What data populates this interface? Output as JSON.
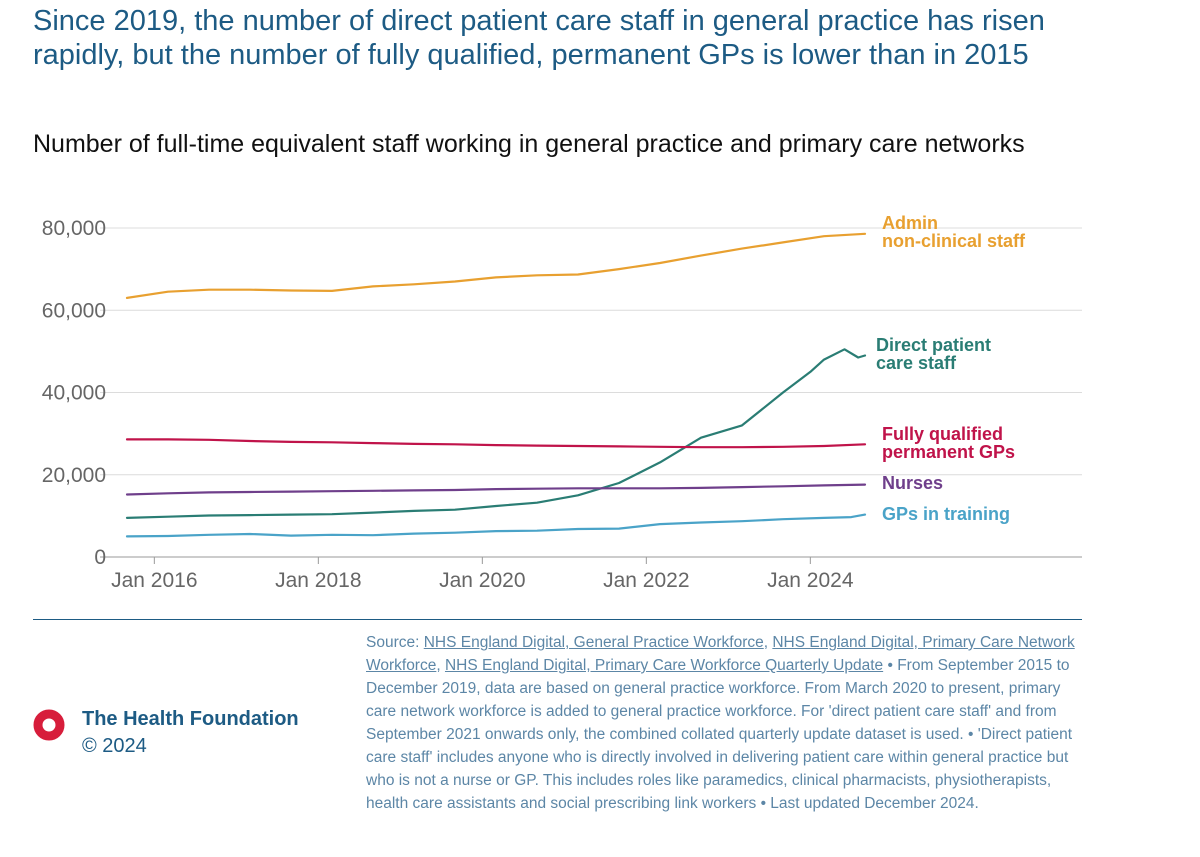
{
  "title": "Since 2019, the number of direct patient care staff in general practice has risen rapidly, but the number of fully qualified, permanent GPs is lower than in 2015",
  "subtitle": "Number of full-time equivalent staff working in general practice and primary care networks",
  "chart_data": {
    "type": "line",
    "x_axis": {
      "type": "date",
      "min": "2015-09",
      "max": "2024-09",
      "ticks": [
        "Jan 2016",
        "Jan 2018",
        "Jan 2020",
        "Jan 2022",
        "Jan 2024"
      ],
      "tick_dates": [
        "2016-01",
        "2018-01",
        "2020-01",
        "2022-01",
        "2024-01"
      ]
    },
    "y_axis": {
      "min": 0,
      "max": 80000,
      "ticks": [
        0,
        20000,
        40000,
        60000,
        80000
      ],
      "tick_labels": [
        "0",
        "20,000",
        "40,000",
        "60,000",
        "80,000"
      ],
      "gridlines": true
    },
    "legend": "direct labels at line ends (right)",
    "series": [
      {
        "name": "Admin non-clinical staff",
        "label_lines": [
          "Admin",
          "non-clinical staff"
        ],
        "color": "#e8a030",
        "points": [
          [
            "2015-09",
            63000
          ],
          [
            "2016-03",
            64500
          ],
          [
            "2016-09",
            65000
          ],
          [
            "2017-03",
            65000
          ],
          [
            "2017-09",
            64800
          ],
          [
            "2018-03",
            64700
          ],
          [
            "2018-09",
            65800
          ],
          [
            "2019-03",
            66300
          ],
          [
            "2019-09",
            67000
          ],
          [
            "2020-03",
            68000
          ],
          [
            "2020-09",
            68500
          ],
          [
            "2021-03",
            68700
          ],
          [
            "2021-09",
            70000
          ],
          [
            "2022-03",
            71500
          ],
          [
            "2022-09",
            73300
          ],
          [
            "2023-03",
            75000
          ],
          [
            "2023-09",
            76500
          ],
          [
            "2024-03",
            78000
          ],
          [
            "2024-09",
            78600
          ]
        ]
      },
      {
        "name": "Direct patient care staff",
        "label_lines": [
          "Direct patient",
          "care staff"
        ],
        "color": "#2a7d74",
        "points": [
          [
            "2015-09",
            9500
          ],
          [
            "2016-03",
            9800
          ],
          [
            "2016-09",
            10100
          ],
          [
            "2017-03",
            10200
          ],
          [
            "2017-09",
            10300
          ],
          [
            "2018-03",
            10400
          ],
          [
            "2018-09",
            10800
          ],
          [
            "2019-03",
            11200
          ],
          [
            "2019-09",
            11500
          ],
          [
            "2020-03",
            12400
          ],
          [
            "2020-09",
            13200
          ],
          [
            "2021-03",
            15000
          ],
          [
            "2021-09",
            18000
          ],
          [
            "2022-03",
            23000
          ],
          [
            "2022-09",
            29000
          ],
          [
            "2023-03",
            32000
          ],
          [
            "2023-09",
            40000
          ],
          [
            "2024-01",
            45000
          ],
          [
            "2024-03",
            48000
          ],
          [
            "2024-06",
            50500
          ],
          [
            "2024-08",
            48500
          ],
          [
            "2024-09",
            49000
          ]
        ]
      },
      {
        "name": "Fully qualified permanent GPs",
        "label_lines": [
          "Fully qualified",
          "permanent GPs"
        ],
        "color": "#c0134a",
        "points": [
          [
            "2015-09",
            28600
          ],
          [
            "2016-03",
            28600
          ],
          [
            "2016-09",
            28500
          ],
          [
            "2017-03",
            28200
          ],
          [
            "2017-09",
            28000
          ],
          [
            "2018-03",
            27900
          ],
          [
            "2018-09",
            27700
          ],
          [
            "2019-03",
            27500
          ],
          [
            "2019-09",
            27400
          ],
          [
            "2020-03",
            27200
          ],
          [
            "2020-09",
            27100
          ],
          [
            "2021-03",
            27000
          ],
          [
            "2021-09",
            26900
          ],
          [
            "2022-03",
            26800
          ],
          [
            "2022-09",
            26700
          ],
          [
            "2023-03",
            26700
          ],
          [
            "2023-09",
            26800
          ],
          [
            "2024-03",
            27000
          ],
          [
            "2024-09",
            27400
          ]
        ]
      },
      {
        "name": "Nurses",
        "label_lines": [
          "Nurses"
        ],
        "color": "#6f3f8b",
        "points": [
          [
            "2015-09",
            15200
          ],
          [
            "2016-03",
            15500
          ],
          [
            "2016-09",
            15700
          ],
          [
            "2017-03",
            15800
          ],
          [
            "2017-09",
            15900
          ],
          [
            "2018-03",
            16000
          ],
          [
            "2018-09",
            16100
          ],
          [
            "2019-03",
            16200
          ],
          [
            "2019-09",
            16300
          ],
          [
            "2020-03",
            16500
          ],
          [
            "2020-09",
            16600
          ],
          [
            "2021-03",
            16700
          ],
          [
            "2021-09",
            16700
          ],
          [
            "2022-03",
            16700
          ],
          [
            "2022-09",
            16800
          ],
          [
            "2023-03",
            17000
          ],
          [
            "2023-09",
            17200
          ],
          [
            "2024-03",
            17400
          ],
          [
            "2024-09",
            17600
          ]
        ]
      },
      {
        "name": "GPs in training",
        "label_lines": [
          "GPs in training"
        ],
        "color": "#4aa3c8",
        "points": [
          [
            "2015-09",
            5000
          ],
          [
            "2016-03",
            5100
          ],
          [
            "2016-09",
            5400
          ],
          [
            "2017-03",
            5600
          ],
          [
            "2017-09",
            5200
          ],
          [
            "2018-03",
            5400
          ],
          [
            "2018-09",
            5300
          ],
          [
            "2019-03",
            5700
          ],
          [
            "2019-09",
            5900
          ],
          [
            "2020-03",
            6300
          ],
          [
            "2020-09",
            6400
          ],
          [
            "2021-03",
            6800
          ],
          [
            "2021-09",
            6900
          ],
          [
            "2022-03",
            8000
          ],
          [
            "2022-09",
            8400
          ],
          [
            "2023-03",
            8700
          ],
          [
            "2023-09",
            9200
          ],
          [
            "2024-03",
            9500
          ],
          [
            "2024-07",
            9700
          ],
          [
            "2024-09",
            10300
          ]
        ]
      }
    ]
  },
  "brand": {
    "name": "The Health Foundation",
    "copyright": "© 2024",
    "logo_icon": "red-ring-logo",
    "color": "#1d5b84",
    "logo_color": "#d71d3b"
  },
  "footnote": {
    "source_label": "Source:",
    "links": [
      "NHS England Digital, General Practice Workforce",
      "NHS England Digital, Primary Care Network Workforce",
      "NHS England Digital, Primary Care Workforce Quarterly Update"
    ],
    "separator": ", ",
    "body": " • From September 2015 to December 2019, data are based on general practice workforce. From March 2020 to present, primary care network workforce is added to general practice workforce. For 'direct patient care staff' and from September 2021 onwards only, the combined collated quarterly update dataset is used. • 'Direct patient care staff' includes anyone who is directly involved in delivering patient care within general practice but who is not a nurse or GP. This includes roles like paramedics, clinical pharmacists, physiotherapists, health care assistants and social prescribing link workers • Last updated December 2024."
  }
}
